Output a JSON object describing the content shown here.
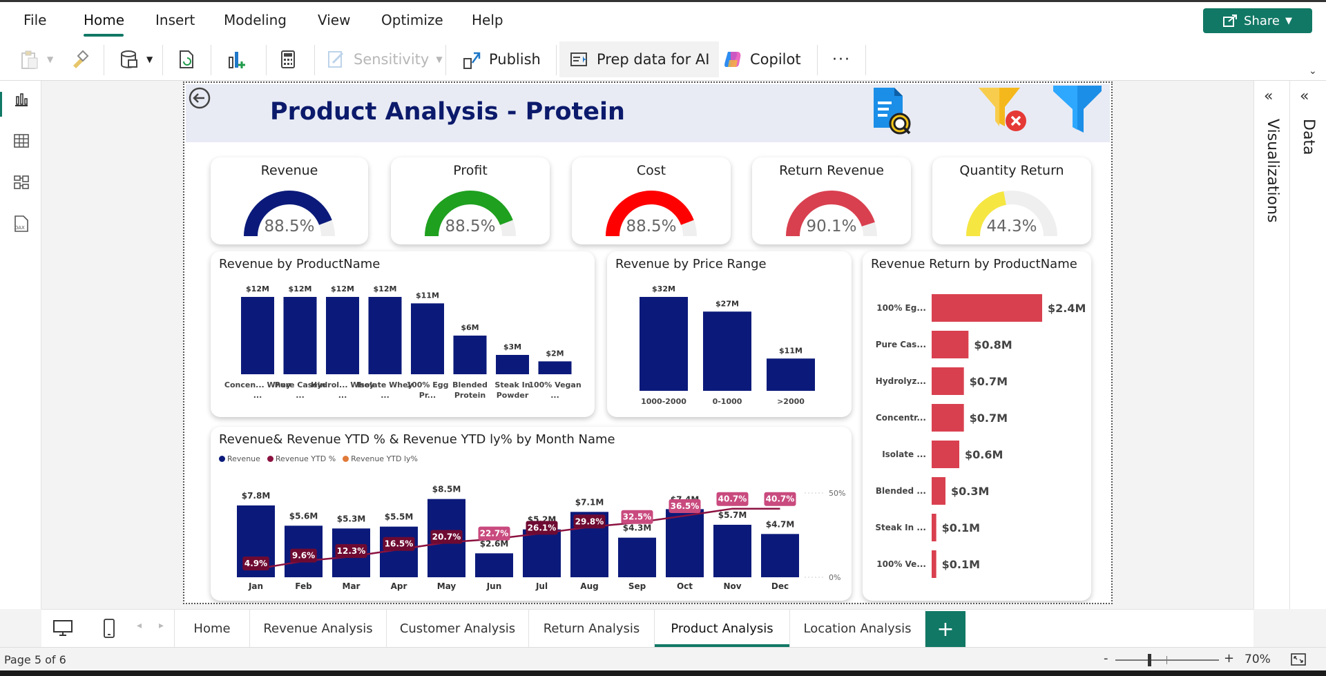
{
  "menu": {
    "items": [
      "File",
      "Home",
      "Insert",
      "Modeling",
      "View",
      "Optimize",
      "Help"
    ],
    "share_label": "Share"
  },
  "ribbon": {
    "sensitivity_label": "Sensitivity",
    "publish_label": "Publish",
    "prep_label": "Prep data for AI",
    "copilot_label": "Copilot",
    "more_label": "···"
  },
  "panes": {
    "visualizations_label": "Visualizations",
    "data_label": "Data"
  },
  "report": {
    "title": "Product Analysis - Protein",
    "kpis": [
      {
        "title": "Revenue",
        "value": "88.5%",
        "fraction": 0.885,
        "color": "#0b1a7a"
      },
      {
        "title": "Profit",
        "value": "88.5%",
        "fraction": 0.885,
        "color": "#1fa01f"
      },
      {
        "title": "Cost",
        "value": "88.5%",
        "fraction": 0.885,
        "color": "#ff0000"
      },
      {
        "title": "Return Revenue",
        "value": "90.1%",
        "fraction": 0.901,
        "color": "#d9404f"
      },
      {
        "title": "Quantity Return",
        "value": "44.3%",
        "fraction": 0.443,
        "color": "#f5e642"
      }
    ]
  },
  "chart_data": [
    {
      "type": "bar",
      "title": "Revenue by ProductName",
      "categories": [
        "Concen... Whey ...",
        "Pure Casein ...",
        "Hydrol... Whey ...",
        "Isolate Whey ...",
        "100% Egg Pr...",
        "Blended Protein",
        "Steak In Powder",
        "100% Vegan ..."
      ],
      "values": [
        12,
        12,
        12,
        12,
        11,
        6,
        3,
        2
      ],
      "data_labels": [
        "$12M",
        "$12M",
        "$12M",
        "$12M",
        "$11M",
        "$6M",
        "$3M",
        "$2M"
      ],
      "color": "#0b1a7a"
    },
    {
      "type": "bar",
      "title": "Revenue by Price Range",
      "categories": [
        "1000-2000",
        "0-1000",
        ">2000"
      ],
      "values": [
        32,
        27,
        11
      ],
      "data_labels": [
        "$32M",
        "$27M",
        "$11M"
      ],
      "color": "#0b1a7a"
    },
    {
      "type": "bar",
      "orientation": "horizontal",
      "title": "Revenue Return by ProductName",
      "categories": [
        "100% Eg...",
        "Pure Cas...",
        "Hydrolyz...",
        "Concentr...",
        "Isolate ...",
        "Blended ...",
        "Steak In ...",
        "100% Ve..."
      ],
      "values": [
        2.4,
        0.8,
        0.7,
        0.7,
        0.6,
        0.3,
        0.1,
        0.1
      ],
      "data_labels": [
        "$2.4M",
        "$0.8M",
        "$0.7M",
        "$0.7M",
        "$0.6M",
        "$0.3M",
        "$0.1M",
        "$0.1M"
      ],
      "color": "#d9404f"
    },
    {
      "type": "bar",
      "title": "Revenue& Revenue YTD % & Revenue YTD ly% by Month Name",
      "categories": [
        "Jan",
        "Feb",
        "Mar",
        "Apr",
        "May",
        "Jun",
        "Jul",
        "Aug",
        "Sep",
        "Oct",
        "Nov",
        "Dec"
      ],
      "legend": [
        "Revenue",
        "Revenue YTD %",
        "Revenue YTD ly%"
      ],
      "legend_colors": [
        "#0b1a7a",
        "#8b1240",
        "#e07a3a"
      ],
      "series": [
        {
          "name": "Revenue",
          "values": [
            7.8,
            5.6,
            5.3,
            5.5,
            8.5,
            2.6,
            5.2,
            7.1,
            4.3,
            7.4,
            5.7,
            4.7
          ],
          "data_labels": [
            "$7.8M",
            "$5.6M",
            "$5.3M",
            "$5.5M",
            "$8.5M",
            "$2.6M",
            "$5.2M",
            "$7.1M",
            "$4.3M",
            "$7.4M",
            "$5.7M",
            "$4.7M"
          ]
        },
        {
          "name": "Revenue YTD %",
          "values": [
            4.9,
            9.6,
            12.3,
            16.5,
            20.7,
            22.7,
            26.1,
            29.8,
            32.5,
            36.5,
            40.7,
            40.7
          ],
          "data_labels": [
            "4.9%",
            "9.6%",
            "12.3%",
            "16.5%",
            "20.7%",
            "22.7%",
            "26.1%",
            "29.8%",
            "32.5%",
            "36.5%",
            "40.7%",
            "40.7%"
          ]
        }
      ],
      "y2_ticks": [
        "50%",
        "0%"
      ],
      "y2lim": [
        0,
        50
      ],
      "ylim": [
        0,
        9
      ]
    }
  ],
  "tabs": [
    "Home",
    "Revenue Analysis",
    "Customer Analysis",
    "Return Analysis",
    "Product Analysis",
    "Location Analysis"
  ],
  "active_tab": "Product Analysis",
  "add_tab_label": "+",
  "status": {
    "page": "Page 5 of 6",
    "zoom": "70%",
    "zoom_minus": "-",
    "zoom_plus": "+"
  }
}
